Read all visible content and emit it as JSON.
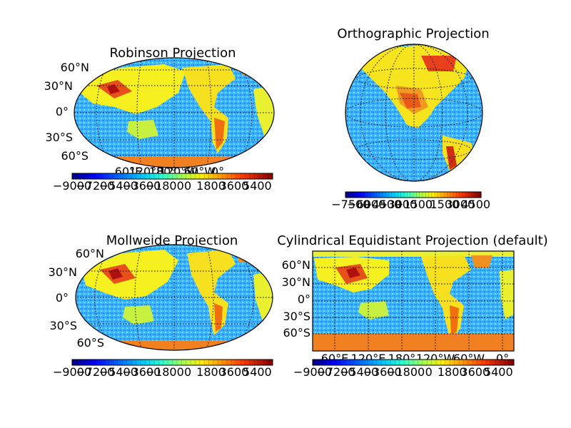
{
  "chart_data": [
    {
      "type": "heatmap",
      "title": "Robinson Projection",
      "projection": "robinson",
      "colormap": "jet",
      "lat_labels": [
        "60°N",
        "30°N",
        "0°",
        "30°S",
        "60°S"
      ],
      "lon_labels": [
        "60°E",
        "120°E",
        "180°",
        "120°W",
        "60°W",
        "0°"
      ],
      "colorbar": {
        "ticks": [
          -9000,
          -7200,
          -5400,
          -3600,
          -1800,
          0,
          1800,
          3600,
          5400
        ],
        "tick_labels": [
          "−9000",
          "−7200",
          "−5400",
          "−3600",
          "−1800",
          "0",
          "1800",
          "3600",
          "5400"
        ],
        "range": [
          -9000,
          6600
        ]
      }
    },
    {
      "type": "heatmap",
      "title": "Orthographic Projection",
      "projection": "orthographic",
      "colormap": "jet",
      "colorbar": {
        "ticks": [
          -7500,
          -6000,
          -4500,
          -3000,
          -1500,
          0,
          1500,
          3000,
          4500
        ],
        "tick_labels": [
          "−7500",
          "−6000",
          "−4500",
          "−3000",
          "−1500",
          "0",
          "1500",
          "3000",
          "4500"
        ],
        "range": [
          -8000,
          5000
        ]
      }
    },
    {
      "type": "heatmap",
      "title": "Mollweide Projection",
      "projection": "mollweide",
      "colormap": "jet",
      "lat_labels": [
        "60°N",
        "30°N",
        "0°",
        "30°S",
        "60°S"
      ],
      "colorbar": {
        "ticks": [
          -9000,
          -7200,
          -5400,
          -3600,
          -1800,
          0,
          1800,
          3600,
          5400
        ],
        "tick_labels": [
          "−9000",
          "−7200",
          "−5400",
          "−3600",
          "−1800",
          "0",
          "1800",
          "3600",
          "5400"
        ],
        "range": [
          -9000,
          6600
        ]
      }
    },
    {
      "type": "heatmap",
      "title": "Cylindrical Equidistant Projection (default)",
      "projection": "cylindrical-equidistant",
      "colormap": "jet",
      "lat_labels": [
        "60°N",
        "30°N",
        "0°",
        "30°S",
        "60°S"
      ],
      "lon_labels": [
        "60°E",
        "120°E",
        "180°",
        "120°W",
        "60°W",
        "0°"
      ],
      "colorbar": {
        "ticks": [
          -9000,
          -7200,
          -5400,
          -3600,
          -1800,
          0,
          1800,
          3600,
          5400
        ],
        "tick_labels": [
          "−9000",
          "−7200",
          "−5400",
          "−3600",
          "−1800",
          "0",
          "1800",
          "3600",
          "5400"
        ],
        "range": [
          -9000,
          6600
        ]
      }
    }
  ]
}
